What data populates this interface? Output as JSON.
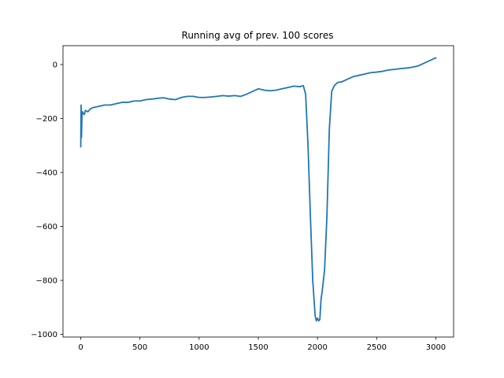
{
  "chart_data": {
    "type": "line",
    "title": "Running avg of prev. 100 scores",
    "xlabel": "",
    "ylabel": "",
    "xlim": [
      -150,
      3150
    ],
    "ylim": [
      -1010,
      70
    ],
    "xticks": [
      0,
      500,
      1000,
      1500,
      2000,
      2500,
      3000
    ],
    "yticks": [
      -1000,
      -800,
      -600,
      -400,
      -200,
      0
    ],
    "xtick_labels": [
      "0",
      "500",
      "1000",
      "1500",
      "2000",
      "2500",
      "3000"
    ],
    "ytick_labels": [
      "−1000",
      "−800",
      "−600",
      "−400",
      "−200",
      "0"
    ],
    "grid": false,
    "line_color": "#1f77b4",
    "series": [
      {
        "x": [
          0,
          3,
          6,
          10,
          15,
          20,
          30,
          40,
          60,
          80,
          100,
          150,
          200,
          250,
          300,
          350,
          400,
          450,
          500,
          550,
          600,
          650,
          700,
          750,
          800,
          850,
          900,
          950,
          1000,
          1050,
          1100,
          1150,
          1200,
          1250,
          1300,
          1350,
          1400,
          1450,
          1500,
          1550,
          1600,
          1650,
          1700,
          1750,
          1800,
          1850,
          1880,
          1900,
          1920,
          1940,
          1960,
          1980,
          1990,
          2000,
          2010,
          2020,
          2030,
          2040,
          2060,
          2080,
          2100,
          2120,
          2140,
          2160,
          2180,
          2200,
          2250,
          2300,
          2350,
          2400,
          2450,
          2500,
          2550,
          2600,
          2650,
          2700,
          2750,
          2800,
          2850,
          2900,
          2950,
          3000
        ],
        "y": [
          -305,
          -150,
          -270,
          -190,
          -175,
          -180,
          -185,
          -170,
          -175,
          -165,
          -160,
          -155,
          -150,
          -150,
          -145,
          -140,
          -140,
          -135,
          -135,
          -130,
          -128,
          -125,
          -123,
          -128,
          -130,
          -122,
          -118,
          -118,
          -122,
          -122,
          -120,
          -118,
          -115,
          -117,
          -115,
          -118,
          -110,
          -100,
          -90,
          -95,
          -97,
          -95,
          -90,
          -85,
          -80,
          -82,
          -78,
          -110,
          -300,
          -560,
          -800,
          -930,
          -950,
          -940,
          -950,
          -945,
          -870,
          -840,
          -760,
          -560,
          -240,
          -100,
          -80,
          -70,
          -65,
          -65,
          -55,
          -45,
          -40,
          -35,
          -30,
          -28,
          -25,
          -20,
          -18,
          -15,
          -13,
          -10,
          -5,
          5,
          15,
          25
        ]
      }
    ]
  }
}
